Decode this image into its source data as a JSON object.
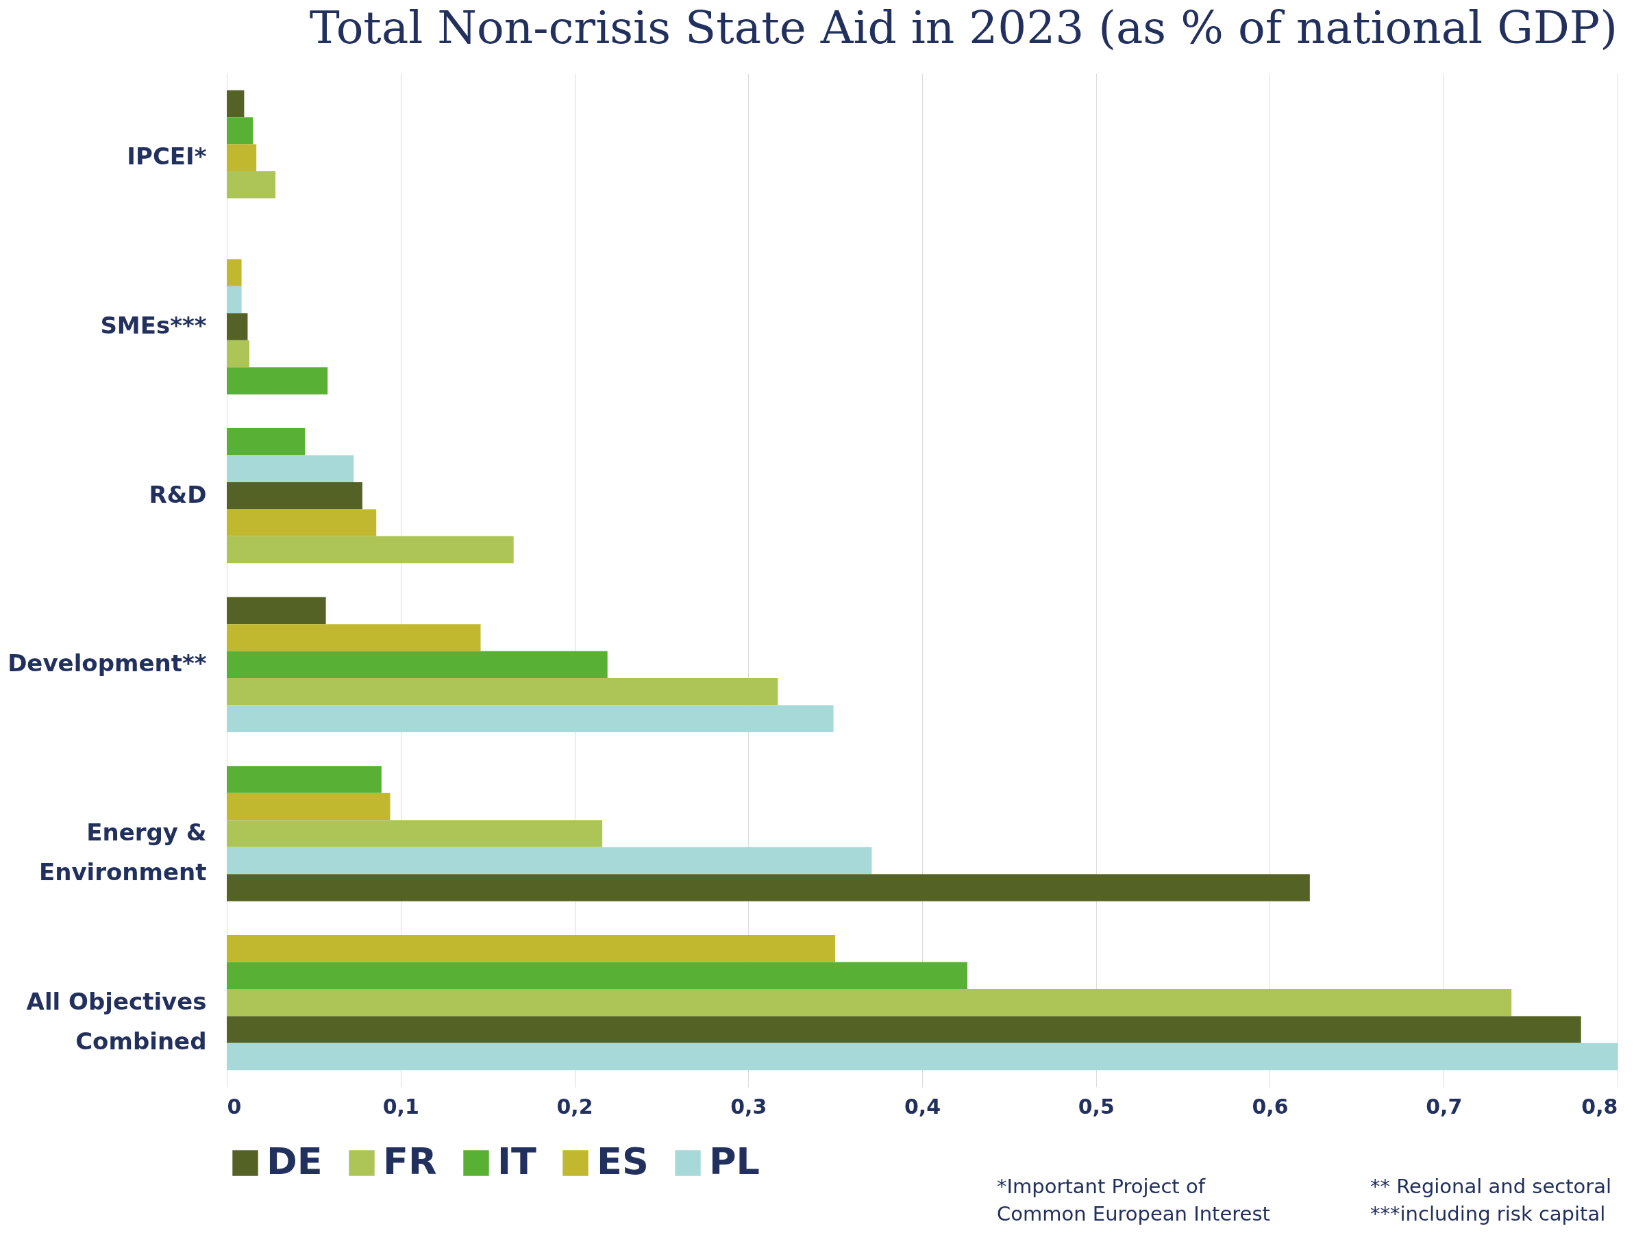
{
  "chart_data": {
    "type": "bar",
    "orientation": "horizontal",
    "title": "Total Non-crisis State Aid in 2023 (as % of national GDP)",
    "categories": [
      "IPCEI*",
      "SMEs***",
      "R&D",
      "Development**",
      "Energy & Environment",
      "All Objectives Combined"
    ],
    "series": [
      {
        "name": "DE",
        "color": "#546325",
        "values": [
          0.01,
          0.012,
          0.078,
          0.057,
          0.623,
          0.779
        ]
      },
      {
        "name": "FR",
        "color": "#adc557",
        "values": [
          0.028,
          0.013,
          0.165,
          0.317,
          0.216,
          0.739
        ]
      },
      {
        "name": "IT",
        "color": "#58b035",
        "values": [
          0.015,
          0.058,
          0.045,
          0.219,
          0.089,
          0.426
        ]
      },
      {
        "name": "ES",
        "color": "#c1b82f",
        "values": [
          0.017,
          0.0085,
          0.086,
          0.146,
          0.094,
          0.35
        ]
      },
      {
        "name": "PL",
        "color": "#a6d9d8",
        "values": [
          null,
          0.0085,
          0.073,
          0.349,
          0.371,
          0.8
        ]
      }
    ],
    "xlim": [
      0,
      0.8
    ],
    "xticks": [
      0,
      {
        "value": 0.1,
        "label": "0,1"
      },
      {
        "value": 0.2,
        "label": "0,2"
      },
      {
        "value": 0.3,
        "label": "0,3"
      },
      {
        "value": 0.4,
        "label": "0,4"
      },
      {
        "value": 0.5,
        "label": "0,5"
      },
      {
        "value": 0.6,
        "label": "0,6"
      },
      {
        "value": 0.7,
        "label": "0,7"
      },
      {
        "value": 0.8,
        "label": "0,8"
      }
    ],
    "grid": "x",
    "legend": "bottom left",
    "annotations": [
      "*Important Project of Common European Interest",
      "** Regional and sectoral",
      "***including risk capital"
    ]
  }
}
